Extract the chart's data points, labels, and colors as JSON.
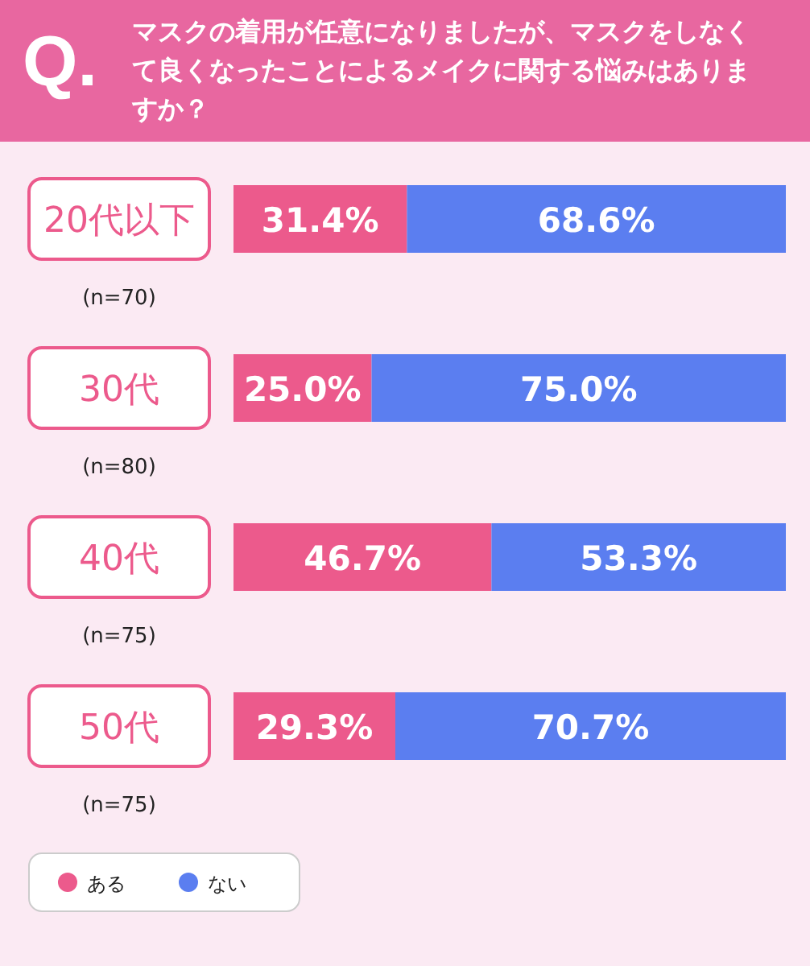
{
  "chart_data": {
    "type": "bar",
    "orientation": "horizontal",
    "stacked": true,
    "title": "マスクの着用が任意になりましたが、マスクをしなくて良くなったことによるメイクに関する悩みはありますか？",
    "annotations": [
      "Q.",
      "(n=70)",
      "(n=80)",
      "(n=75)",
      "(n=75)"
    ],
    "categories": [
      "20代以下",
      "30代",
      "40代",
      "50代"
    ],
    "xlim": [
      0,
      100
    ],
    "legend": "bottom left",
    "series": [
      {
        "name": "ある",
        "color": "#ec5a8c",
        "values": [
          31.4,
          25.0,
          46.7,
          29.3
        ],
        "value_labels": [
          "31.4%",
          "25.0%",
          "46.7%",
          "29.3%"
        ]
      },
      {
        "name": "ない",
        "color": "#5b7ef0",
        "values": [
          68.6,
          75.0,
          53.3,
          70.7
        ],
        "value_labels": [
          "68.6%",
          "75.0%",
          "53.3%",
          "70.7%"
        ]
      }
    ]
  }
}
